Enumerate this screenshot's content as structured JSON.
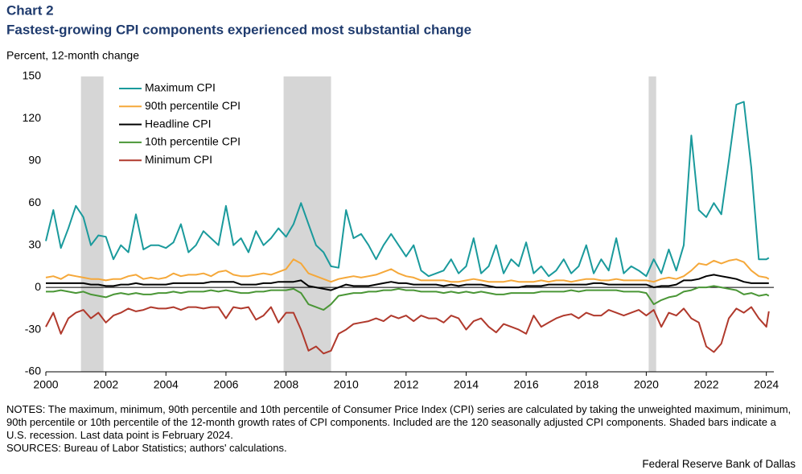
{
  "chart_data": {
    "type": "line",
    "title": "Chart 2",
    "subtitle": "Fastest-growing CPI components experienced most substantial change",
    "ylabel": "Percent, 12-month change",
    "notes": "NOTES: The maximum, minimum, 90th percentile and 10th percentile of Consumer Price Index (CPI) series are calculated by taking the unweighted maximum, minimum, 90th percentile or 10th percentile of the 12-month growth rates of CPI components. Included are the 120 seasonally adjusted CPI components. Shaded bars indicate a U.S. recession. Last data point is February 2024.",
    "sources": "SOURCES: Bureau of Labor Statistics; authors' calculations.",
    "source_org": "Federal Reserve Bank of Dallas",
    "xlim": [
      2000,
      2024.25
    ],
    "xticks": [
      2000,
      2002,
      2004,
      2006,
      2008,
      2010,
      2012,
      2014,
      2016,
      2018,
      2020,
      2022,
      2024
    ],
    "ylim": [
      -60,
      150
    ],
    "yticks": [
      -60,
      -30,
      0,
      30,
      60,
      90,
      120,
      150
    ],
    "recessions": [
      [
        2001.17,
        2001.92
      ],
      [
        2007.92,
        2009.5
      ],
      [
        2020.08,
        2020.33
      ]
    ],
    "recession_color": "#d6d6d6",
    "legend": "upper left",
    "x": [
      2000,
      2000.25,
      2000.5,
      2000.75,
      2001,
      2001.25,
      2001.5,
      2001.75,
      2002,
      2002.25,
      2002.5,
      2002.75,
      2003,
      2003.25,
      2003.5,
      2003.75,
      2004,
      2004.25,
      2004.5,
      2004.75,
      2005,
      2005.25,
      2005.5,
      2005.75,
      2006,
      2006.25,
      2006.5,
      2006.75,
      2007,
      2007.25,
      2007.5,
      2007.75,
      2008,
      2008.25,
      2008.5,
      2008.75,
      2009,
      2009.25,
      2009.5,
      2009.75,
      2010,
      2010.25,
      2010.5,
      2010.75,
      2011,
      2011.25,
      2011.5,
      2011.75,
      2012,
      2012.25,
      2012.5,
      2012.75,
      2013,
      2013.25,
      2013.5,
      2013.75,
      2014,
      2014.25,
      2014.5,
      2014.75,
      2015,
      2015.25,
      2015.5,
      2015.75,
      2016,
      2016.25,
      2016.5,
      2016.75,
      2017,
      2017.25,
      2017.5,
      2017.75,
      2018,
      2018.25,
      2018.5,
      2018.75,
      2019,
      2019.25,
      2019.5,
      2019.75,
      2020,
      2020.25,
      2020.5,
      2020.75,
      2021,
      2021.25,
      2021.5,
      2021.75,
      2022,
      2022.25,
      2022.5,
      2022.75,
      2023,
      2023.25,
      2023.5,
      2023.75,
      2024,
      2024.083
    ],
    "series": [
      {
        "name": "Maximum CPI",
        "color": "#1a9a9c",
        "values": [
          33,
          55,
          28,
          42,
          58,
          50,
          30,
          37,
          36,
          20,
          30,
          25,
          52,
          27,
          30,
          30,
          28,
          32,
          45,
          25,
          30,
          40,
          35,
          30,
          58,
          30,
          35,
          25,
          40,
          30,
          35,
          42,
          36,
          45,
          60,
          45,
          30,
          25,
          15,
          14,
          55,
          35,
          38,
          30,
          20,
          30,
          38,
          30,
          22,
          30,
          12,
          8,
          10,
          12,
          20,
          10,
          15,
          35,
          10,
          15,
          30,
          10,
          20,
          15,
          32,
          10,
          15,
          8,
          12,
          20,
          10,
          15,
          30,
          10,
          20,
          12,
          35,
          10,
          15,
          12,
          8,
          20,
          10,
          27,
          12,
          30,
          108,
          55,
          50,
          60,
          52,
          90,
          130,
          132,
          85,
          20,
          20,
          21
        ]
      },
      {
        "name": "90th percentile CPI",
        "color": "#f5a83a",
        "values": [
          7,
          8,
          6,
          9,
          8,
          7,
          6,
          6,
          5,
          6,
          6,
          8,
          9,
          6,
          7,
          6,
          7,
          10,
          8,
          9,
          9,
          10,
          8,
          11,
          12,
          9,
          8,
          8,
          9,
          10,
          9,
          11,
          13,
          20,
          17,
          10,
          8,
          6,
          4,
          6,
          7,
          8,
          7,
          8,
          9,
          11,
          13,
          10,
          8,
          7,
          5,
          5,
          5,
          5,
          4,
          4,
          5,
          6,
          5,
          4,
          4,
          4,
          5,
          4,
          4,
          4,
          5,
          4,
          5,
          5,
          4,
          5,
          6,
          6,
          5,
          5,
          6,
          5,
          5,
          5,
          5,
          4,
          6,
          7,
          6,
          8,
          12,
          17,
          16,
          19,
          17,
          19,
          20,
          18,
          12,
          8,
          7,
          6
        ]
      },
      {
        "name": "Headline CPI",
        "color": "#000000",
        "values": [
          3,
          3,
          3,
          3,
          3,
          3,
          2,
          2,
          1,
          1,
          2,
          2,
          3,
          2,
          2,
          2,
          2,
          3,
          3,
          3,
          3,
          3,
          4,
          4,
          4,
          4,
          2,
          2,
          2,
          3,
          3,
          4,
          4,
          4,
          5,
          1,
          0,
          -1,
          -2,
          0,
          2,
          1,
          1,
          1,
          2,
          3,
          4,
          3,
          3,
          2,
          2,
          2,
          2,
          1,
          2,
          1,
          2,
          2,
          2,
          1,
          0,
          0,
          0,
          0,
          1,
          1,
          1,
          2,
          2,
          2,
          2,
          2,
          2,
          3,
          3,
          2,
          2,
          2,
          2,
          2,
          2,
          0,
          1,
          1,
          2,
          5,
          5,
          6,
          8,
          9,
          8,
          7,
          6,
          4,
          3,
          3,
          3,
          3
        ]
      },
      {
        "name": "10th percentile CPI",
        "color": "#4a9636",
        "values": [
          -3,
          -3,
          -2,
          -3,
          -4,
          -3,
          -5,
          -6,
          -7,
          -5,
          -4,
          -5,
          -4,
          -5,
          -5,
          -4,
          -4,
          -3,
          -4,
          -3,
          -3,
          -3,
          -2,
          -3,
          -2,
          -3,
          -4,
          -4,
          -3,
          -3,
          -2,
          -2,
          -2,
          -1,
          -4,
          -12,
          -14,
          -16,
          -12,
          -6,
          -5,
          -4,
          -4,
          -3,
          -3,
          -2,
          -2,
          -1,
          -2,
          -2,
          -3,
          -3,
          -3,
          -4,
          -3,
          -4,
          -3,
          -4,
          -3,
          -4,
          -5,
          -5,
          -4,
          -4,
          -4,
          -4,
          -3,
          -3,
          -3,
          -3,
          -2,
          -3,
          -2,
          -2,
          -2,
          -2,
          -2,
          -3,
          -3,
          -3,
          -4,
          -12,
          -9,
          -7,
          -6,
          -3,
          -2,
          0,
          0,
          1,
          0,
          -1,
          -2,
          -5,
          -4,
          -6,
          -5,
          -6
        ]
      },
      {
        "name": "Minimum CPI",
        "color": "#b0392c",
        "values": [
          -28,
          -18,
          -33,
          -22,
          -18,
          -16,
          -22,
          -18,
          -25,
          -20,
          -18,
          -15,
          -17,
          -16,
          -14,
          -15,
          -15,
          -14,
          -16,
          -14,
          -14,
          -15,
          -14,
          -14,
          -22,
          -14,
          -15,
          -14,
          -23,
          -20,
          -14,
          -25,
          -18,
          -18,
          -30,
          -45,
          -42,
          -47,
          -45,
          -33,
          -30,
          -26,
          -25,
          -24,
          -22,
          -24,
          -20,
          -22,
          -20,
          -24,
          -20,
          -22,
          -22,
          -25,
          -20,
          -22,
          -30,
          -24,
          -22,
          -28,
          -32,
          -26,
          -28,
          -30,
          -33,
          -20,
          -28,
          -25,
          -22,
          -20,
          -19,
          -22,
          -18,
          -20,
          -20,
          -16,
          -18,
          -20,
          -18,
          -16,
          -20,
          -16,
          -28,
          -18,
          -20,
          -15,
          -22,
          -25,
          -42,
          -46,
          -40,
          -22,
          -15,
          -18,
          -14,
          -22,
          -28,
          -17
        ]
      }
    ]
  }
}
